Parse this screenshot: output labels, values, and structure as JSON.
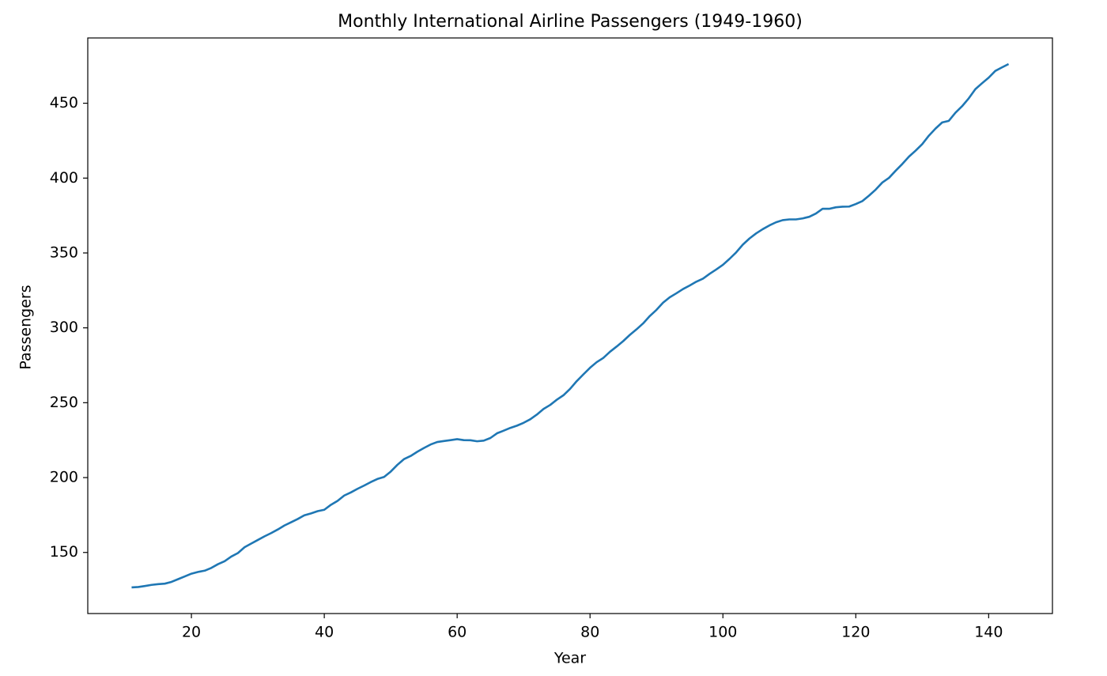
{
  "chart_data": {
    "type": "line",
    "title": "Monthly International Airline Passengers (1949-1960)",
    "x_label": "Year",
    "y_label": "Passengers",
    "x": [
      11,
      12,
      13,
      14,
      15,
      16,
      17,
      18,
      19,
      20,
      21,
      22,
      23,
      24,
      25,
      26,
      27,
      28,
      29,
      30,
      31,
      32,
      33,
      34,
      35,
      36,
      37,
      38,
      39,
      40,
      41,
      42,
      43,
      44,
      45,
      46,
      47,
      48,
      49,
      50,
      51,
      52,
      53,
      54,
      55,
      56,
      57,
      58,
      59,
      60,
      61,
      62,
      63,
      64,
      65,
      66,
      67,
      68,
      69,
      70,
      71,
      72,
      73,
      74,
      75,
      76,
      77,
      78,
      79,
      80,
      81,
      82,
      83,
      84,
      85,
      86,
      87,
      88,
      89,
      90,
      91,
      92,
      93,
      94,
      95,
      96,
      97,
      98,
      99,
      100,
      101,
      102,
      103,
      104,
      105,
      106,
      107,
      108,
      109,
      110,
      111,
      112,
      113,
      114,
      115,
      116,
      117,
      118,
      119,
      120,
      121,
      122,
      123,
      124,
      125,
      126,
      127,
      128,
      129,
      130,
      131,
      132,
      133,
      134,
      135,
      136,
      137,
      138,
      139,
      140,
      141,
      142,
      143
    ],
    "series": [
      {
        "name": "Passengers",
        "color": "#1f77b4",
        "values": [
          126.67,
          126.92,
          127.58,
          128.33,
          128.83,
          129.17,
          130.33,
          132.17,
          134.0,
          135.83,
          137.0,
          137.83,
          139.67,
          142.17,
          144.17,
          147.25,
          149.58,
          153.5,
          155.92,
          158.33,
          160.75,
          162.92,
          165.33,
          168.0,
          170.17,
          172.33,
          174.83,
          176.08,
          177.58,
          178.5,
          181.83,
          184.42,
          188.0,
          190.08,
          192.5,
          194.67,
          197.0,
          199.08,
          200.42,
          204.0,
          208.5,
          212.33,
          214.42,
          217.25,
          219.75,
          222.08,
          223.75,
          224.42,
          225.0,
          225.67,
          225.0,
          224.92,
          224.25,
          224.67,
          226.42,
          229.58,
          231.33,
          233.17,
          234.67,
          236.58,
          238.92,
          242.08,
          245.83,
          248.5,
          252.0,
          255.0,
          259.25,
          264.42,
          268.92,
          273.33,
          277.08,
          279.92,
          284.0,
          287.5,
          291.17,
          295.33,
          299.0,
          303.0,
          307.92,
          312.0,
          316.83,
          320.42,
          323.08,
          325.92,
          328.25,
          330.83,
          332.83,
          336.08,
          339.0,
          342.08,
          346.08,
          350.42,
          355.58,
          359.67,
          363.08,
          365.92,
          368.42,
          370.5,
          371.92,
          372.42,
          372.42,
          373.08,
          374.17,
          376.33,
          379.5,
          379.5,
          380.5,
          380.92,
          381.0,
          382.67,
          384.67,
          388.33,
          392.33,
          397.08,
          400.17,
          404.92,
          409.42,
          414.33,
          418.33,
          422.67,
          428.33,
          433.08,
          437.17,
          438.25,
          443.67,
          448.0,
          453.25,
          459.42,
          463.33,
          467.08,
          471.58,
          473.92,
          476.17
        ]
      }
    ],
    "xlim": [
      4.4,
      149.6
    ],
    "ylim": [
      109.2,
      493.6
    ],
    "xticks": [
      20,
      40,
      60,
      80,
      100,
      120,
      140
    ],
    "yticks": [
      150,
      200,
      250,
      300,
      350,
      400,
      450
    ],
    "grid": false
  }
}
